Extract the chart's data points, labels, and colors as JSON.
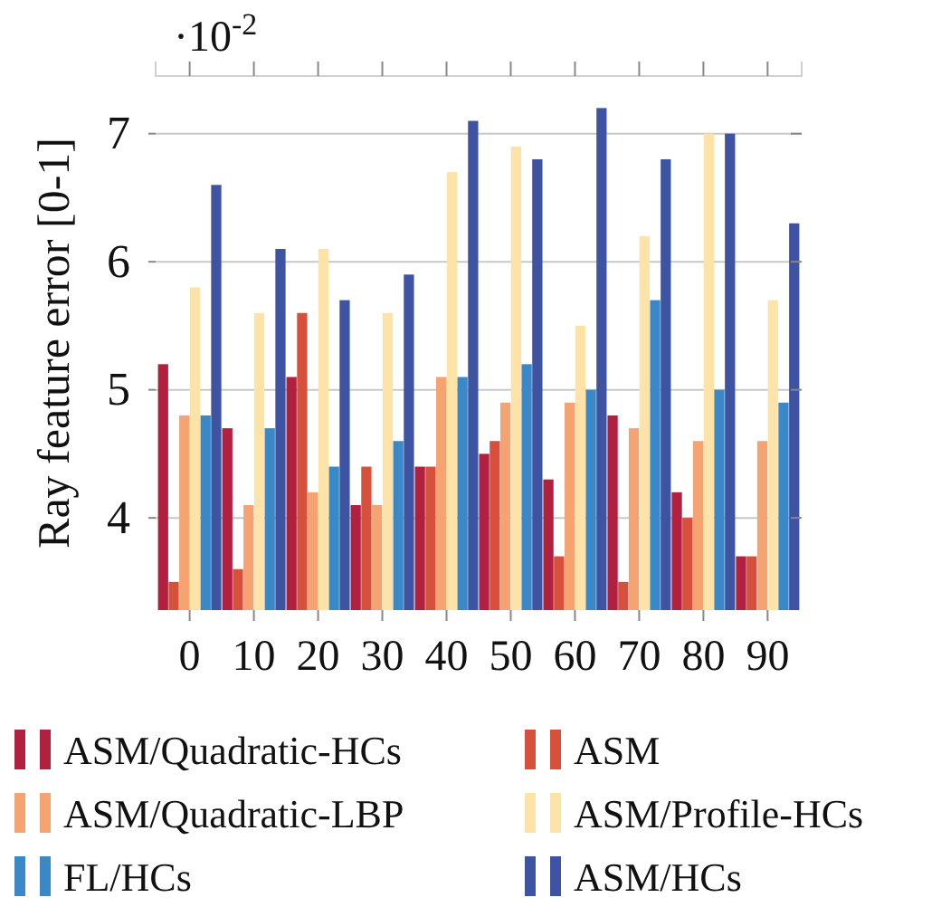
{
  "chart_data": {
    "type": "bar",
    "ylabel": "Ray feature error [0-1]",
    "annotations": [
      "·10$^{-2}$"
    ],
    "categories": [
      "0",
      "10",
      "20",
      "30",
      "40",
      "50",
      "60",
      "70",
      "80",
      "90"
    ],
    "series": [
      {
        "name": "ASM/Quadratic-HCs",
        "color": "#b2203f",
        "values": [
          5.2,
          4.7,
          5.1,
          4.1,
          4.4,
          4.5,
          4.3,
          4.8,
          4.2,
          3.7
        ]
      },
      {
        "name": "ASM",
        "color": "#d6503c",
        "values": [
          3.5,
          3.6,
          5.6,
          4.4,
          4.4,
          4.6,
          3.7,
          3.5,
          4.0,
          3.7
        ]
      },
      {
        "name": "ASM/Quadratic-LBP",
        "color": "#f4a371",
        "values": [
          4.8,
          4.1,
          4.2,
          4.1,
          5.1,
          4.9,
          4.9,
          4.7,
          4.6,
          4.6
        ]
      },
      {
        "name": "ASM/Profile-HCs",
        "color": "#fee3a8",
        "values": [
          5.8,
          5.6,
          6.1,
          5.6,
          6.7,
          6.9,
          5.5,
          6.2,
          7.0,
          5.7
        ]
      },
      {
        "name": "FL/HCs",
        "color": "#3b88c8",
        "values": [
          4.8,
          4.7,
          4.4,
          4.6,
          5.1,
          5.2,
          5.0,
          5.7,
          5.0,
          4.9
        ]
      },
      {
        "name": "ASM/HCs",
        "color": "#3f53a3",
        "values": [
          6.6,
          6.1,
          5.7,
          5.9,
          7.1,
          6.8,
          7.2,
          6.8,
          7.0,
          6.3
        ]
      }
    ],
    "ylim": [
      3.28,
      7.45
    ],
    "yticks": [
      4,
      5,
      6,
      7
    ],
    "grid": "y",
    "legend": "bottom"
  }
}
